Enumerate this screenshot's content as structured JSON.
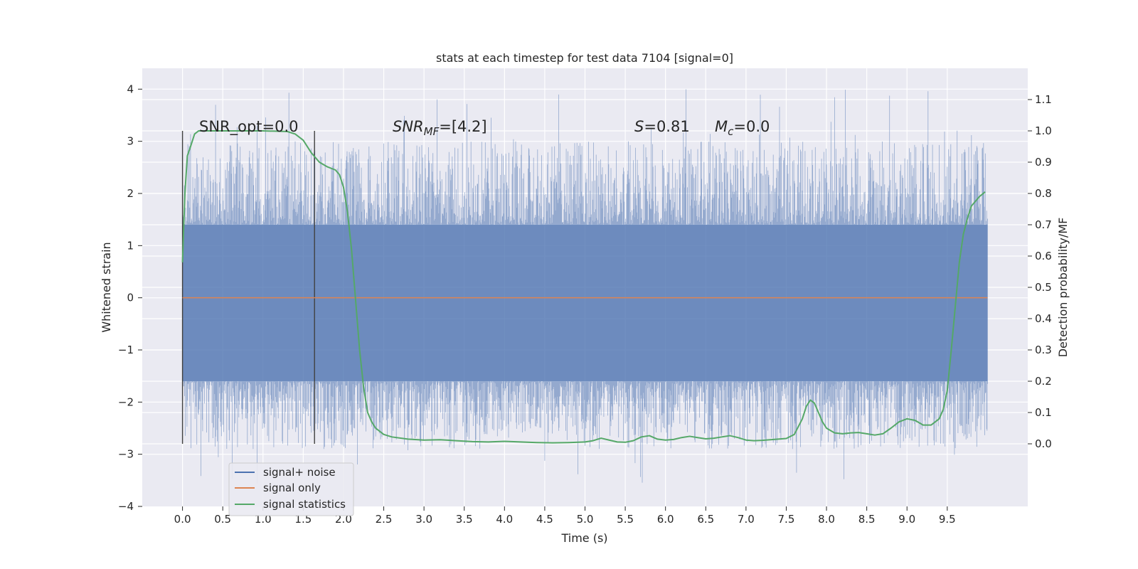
{
  "chart_data": {
    "type": "line",
    "title": "stats at each timestep for test data 7104 [signal=0]",
    "xlabel": "Time (s)",
    "ylabel_left": "Whitened strain",
    "ylabel_right": "Detection probability/MF",
    "xlim": [
      -0.5,
      10.5
    ],
    "ylim_left": [
      -4,
      4.4
    ],
    "ylim_right": [
      -0.2,
      1.2
    ],
    "x_ticks": [
      0.0,
      0.5,
      1.0,
      1.5,
      2.0,
      2.5,
      3.0,
      3.5,
      4.0,
      4.5,
      5.0,
      5.5,
      6.0,
      6.5,
      7.0,
      7.5,
      8.0,
      8.5,
      9.0,
      9.5
    ],
    "x_tick_labels": [
      "0.0",
      "0.5",
      "1.0",
      "1.5",
      "2.0",
      "2.5",
      "3.0",
      "3.5",
      "4.0",
      "4.5",
      "5.0",
      "5.5",
      "6.0",
      "6.5",
      "7.0",
      "7.5",
      "8.0",
      "8.5",
      "9.0",
      "9.5"
    ],
    "y_left_ticks": [
      -4,
      -3,
      -2,
      -1,
      0,
      1,
      2,
      3,
      4
    ],
    "y_left_tick_labels": [
      "−4",
      "−3",
      "−2",
      "−1",
      "0",
      "1",
      "2",
      "3",
      "4"
    ],
    "y_right_ticks": [
      0.0,
      0.1,
      0.2,
      0.3,
      0.4,
      0.5,
      0.6,
      0.7,
      0.8,
      0.9,
      1.0,
      1.1
    ],
    "y_right_tick_labels": [
      "0.0",
      "0.1",
      "0.2",
      "0.3",
      "0.4",
      "0.5",
      "0.6",
      "0.7",
      "0.8",
      "0.9",
      "1.0",
      "1.1"
    ],
    "grid": true,
    "legend_placement": "lower-left",
    "annotations": {
      "snr_opt": "SNR_opt=0.0",
      "snr_mf_main": "SNR",
      "snr_mf_sub": "MF",
      "snr_mf_value": "=[4.2]",
      "s_main": "S",
      "s_value": "=0.81",
      "mc_main": "M",
      "mc_sub": "c",
      "mc_value": "=0.0"
    },
    "vertical_markers": [
      {
        "x": 0.0,
        "y_range": [
          -2.8,
          3.2
        ]
      },
      {
        "x": 1.64,
        "y_range": [
          -2.8,
          3.2
        ]
      }
    ],
    "series": [
      {
        "name": "signal+ noise",
        "color": "#4c72b0",
        "axis": "left",
        "x_range": [
          0.0,
          10.0
        ],
        "core_band": [
          -1.6,
          1.4
        ],
        "envelope_max": 4.05,
        "envelope_min": -3.6
      },
      {
        "name": "signal only",
        "color": "#dd8452",
        "axis": "left",
        "x": [
          0.0,
          10.0
        ],
        "y": [
          0.0,
          0.0
        ]
      },
      {
        "name": "signal statistics",
        "color": "#55a868",
        "axis": "right",
        "x": [
          0.0,
          0.03,
          0.06,
          0.1,
          0.15,
          0.2,
          0.3,
          0.5,
          1.0,
          1.3,
          1.4,
          1.5,
          1.6,
          1.7,
          1.8,
          1.9,
          1.95,
          2.0,
          2.05,
          2.1,
          2.15,
          2.2,
          2.25,
          2.3,
          2.35,
          2.4,
          2.5,
          2.6,
          2.8,
          3.0,
          3.2,
          3.4,
          3.6,
          3.8,
          4.0,
          4.2,
          4.4,
          4.6,
          4.8,
          5.0,
          5.1,
          5.2,
          5.3,
          5.4,
          5.5,
          5.6,
          5.7,
          5.8,
          5.9,
          6.0,
          6.1,
          6.2,
          6.3,
          6.4,
          6.5,
          6.6,
          6.7,
          6.8,
          6.9,
          7.0,
          7.1,
          7.2,
          7.3,
          7.4,
          7.5,
          7.6,
          7.7,
          7.75,
          7.8,
          7.85,
          7.9,
          7.95,
          8.0,
          8.1,
          8.2,
          8.3,
          8.4,
          8.5,
          8.6,
          8.7,
          8.8,
          8.9,
          9.0,
          9.1,
          9.2,
          9.3,
          9.4,
          9.45,
          9.5,
          9.55,
          9.6,
          9.65,
          9.7,
          9.75,
          9.8,
          9.9,
          9.97
        ],
        "y": [
          0.58,
          0.8,
          0.92,
          0.95,
          0.99,
          1.0,
          1.0,
          1.0,
          1.0,
          0.998,
          0.99,
          0.97,
          0.93,
          0.9,
          0.885,
          0.875,
          0.86,
          0.82,
          0.74,
          0.62,
          0.46,
          0.3,
          0.18,
          0.1,
          0.07,
          0.05,
          0.03,
          0.022,
          0.015,
          0.012,
          0.013,
          0.01,
          0.007,
          0.006,
          0.008,
          0.006,
          0.004,
          0.003,
          0.004,
          0.006,
          0.01,
          0.018,
          0.012,
          0.006,
          0.005,
          0.01,
          0.022,
          0.026,
          0.015,
          0.012,
          0.014,
          0.02,
          0.024,
          0.02,
          0.016,
          0.018,
          0.022,
          0.026,
          0.02,
          0.012,
          0.01,
          0.011,
          0.013,
          0.015,
          0.017,
          0.03,
          0.08,
          0.12,
          0.14,
          0.13,
          0.1,
          0.07,
          0.05,
          0.035,
          0.032,
          0.035,
          0.036,
          0.032,
          0.028,
          0.032,
          0.05,
          0.07,
          0.08,
          0.075,
          0.06,
          0.06,
          0.08,
          0.11,
          0.17,
          0.3,
          0.44,
          0.58,
          0.67,
          0.72,
          0.76,
          0.79,
          0.805
        ]
      }
    ]
  }
}
